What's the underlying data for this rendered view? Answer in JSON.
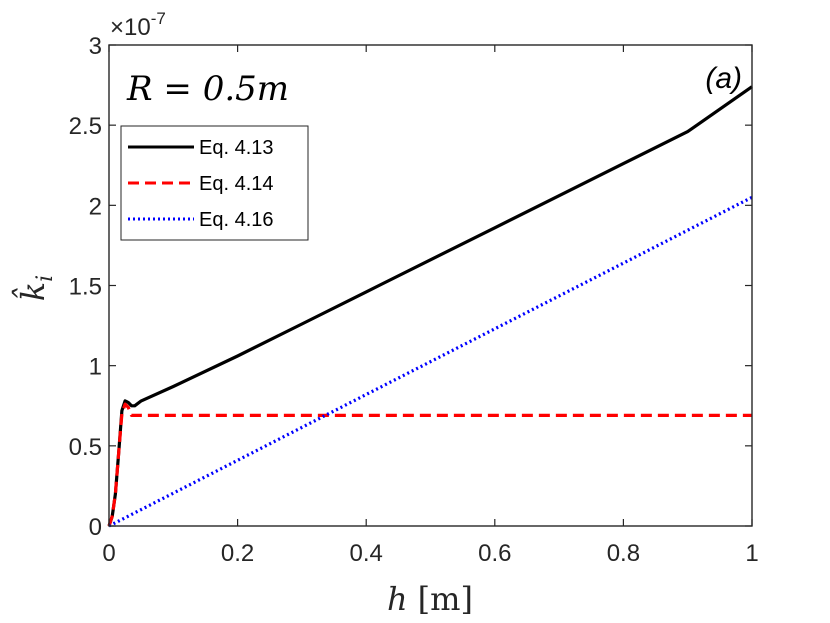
{
  "chart_data": {
    "type": "line",
    "title": "",
    "xlabel": {
      "var": "h",
      "unit": "[m]"
    },
    "ylabel": "k̂",
    "ylabel_sub": "i",
    "xlim": [
      0,
      1
    ],
    "ylim": [
      0,
      3
    ],
    "y_multiplier": "×10",
    "y_multiplier_exp": "-7",
    "xticks": [
      0,
      0.2,
      0.4,
      0.6,
      0.8,
      1
    ],
    "xtick_labels": [
      "0",
      "0.2",
      "0.4",
      "0.6",
      "0.8",
      "1"
    ],
    "yticks": [
      0,
      0.5,
      1,
      1.5,
      2,
      2.5,
      3
    ],
    "ytick_labels": [
      "0",
      "0.5",
      "1",
      "1.5",
      "2",
      "2.5",
      "3"
    ],
    "grid": false,
    "legend_position": "top-left",
    "annotations": [
      {
        "id": "radius",
        "text": "R = 0.5m"
      },
      {
        "id": "panel",
        "text": "(a)"
      }
    ],
    "series": [
      {
        "name": "Eq. 4.13",
        "color": "#000000",
        "style": "solid",
        "x": [
          0,
          0.005,
          0.01,
          0.015,
          0.02,
          0.025,
          0.03,
          0.035,
          0.04,
          0.05,
          0.1,
          0.2,
          0.3,
          0.4,
          0.5,
          0.6,
          0.7,
          0.8,
          0.9,
          1.0
        ],
        "y": [
          0,
          0.06,
          0.2,
          0.45,
          0.72,
          0.78,
          0.77,
          0.75,
          0.75,
          0.78,
          0.87,
          1.06,
          1.26,
          1.46,
          1.66,
          1.86,
          2.06,
          2.26,
          2.46,
          2.74
        ]
      },
      {
        "name": "Eq. 4.14",
        "color": "#ff0000",
        "style": "dashed",
        "x": [
          0,
          0.005,
          0.01,
          0.015,
          0.02,
          0.025,
          0.03,
          0.035,
          0.04,
          0.1,
          0.3,
          0.5,
          0.7,
          0.9,
          1.0
        ],
        "y": [
          0,
          0.06,
          0.2,
          0.45,
          0.7,
          0.76,
          0.74,
          0.69,
          0.69,
          0.69,
          0.69,
          0.69,
          0.69,
          0.69,
          0.69
        ]
      },
      {
        "name": "Eq. 4.16",
        "color": "#0000ff",
        "style": "dotted",
        "x": [
          0,
          0.2,
          0.4,
          0.6,
          0.8,
          1.0
        ],
        "y": [
          0,
          0.41,
          0.82,
          1.23,
          1.64,
          2.05
        ]
      }
    ]
  }
}
